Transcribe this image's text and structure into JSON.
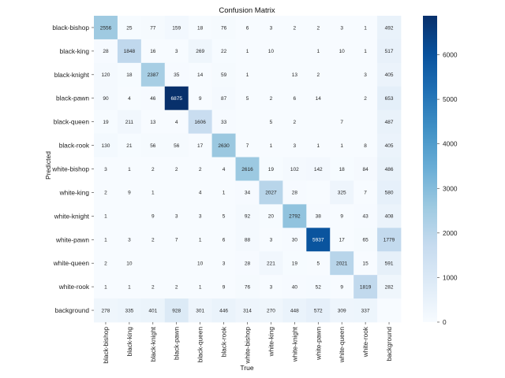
{
  "chart_data": {
    "type": "heatmap",
    "title": "Confusion Matrix",
    "xlabel": "True",
    "ylabel": "Predicted",
    "x_labels": [
      "black-bishop",
      "black-king",
      "black-knight",
      "black-pawn",
      "black-queen",
      "black-rook",
      "white-bishop",
      "white-king",
      "white-knight",
      "white-pawn",
      "white-queen",
      "white-rook",
      "background"
    ],
    "y_labels": [
      "black-bishop",
      "black-king",
      "black-knight",
      "black-pawn",
      "black-queen",
      "black-rook",
      "white-bishop",
      "white-king",
      "white-knight",
      "white-pawn",
      "white-queen",
      "white-rook",
      "background"
    ],
    "values": [
      [
        2556,
        25,
        77,
        159,
        18,
        76,
        6,
        3,
        2,
        2,
        3,
        1,
        492
      ],
      [
        28,
        1848,
        16,
        3,
        269,
        22,
        1,
        10,
        null,
        1,
        10,
        1,
        517
      ],
      [
        120,
        18,
        2387,
        35,
        14,
        59,
        1,
        null,
        13,
        2,
        null,
        3,
        405
      ],
      [
        90,
        4,
        46,
        6875,
        9,
        87,
        5,
        2,
        6,
        14,
        null,
        2,
        653
      ],
      [
        19,
        211,
        13,
        4,
        1606,
        33,
        null,
        5,
        2,
        null,
        7,
        null,
        487
      ],
      [
        130,
        21,
        56,
        56,
        17,
        2630,
        7,
        1,
        3,
        1,
        1,
        8,
        405
      ],
      [
        3,
        1,
        2,
        2,
        2,
        4,
        2616,
        19,
        102,
        142,
        18,
        84,
        486
      ],
      [
        2,
        9,
        1,
        null,
        4,
        1,
        34,
        2027,
        28,
        null,
        325,
        7,
        580
      ],
      [
        1,
        null,
        9,
        3,
        3,
        5,
        92,
        20,
        2792,
        38,
        9,
        43,
        408
      ],
      [
        1,
        3,
        2,
        7,
        1,
        6,
        88,
        3,
        30,
        5937,
        17,
        65,
        1779
      ],
      [
        2,
        10,
        null,
        null,
        10,
        3,
        28,
        221,
        19,
        5,
        2021,
        15,
        591
      ],
      [
        1,
        1,
        2,
        2,
        1,
        9,
        76,
        3,
        40,
        52,
        9,
        1819,
        282
      ],
      [
        278,
        335,
        401,
        928,
        301,
        446,
        314,
        270,
        448,
        572,
        309,
        337,
        null
      ]
    ],
    "colorbar": {
      "min": 0,
      "max": 6875,
      "ticks": [
        0,
        1000,
        2000,
        3000,
        4000,
        5000,
        6000
      ],
      "colormap": "Blues",
      "colors": [
        "#f7fbff",
        "#deebf7",
        "#c6dbef",
        "#9ecae1",
        "#6baed6",
        "#4292c6",
        "#2171b5",
        "#08519c",
        "#08306b"
      ]
    }
  }
}
